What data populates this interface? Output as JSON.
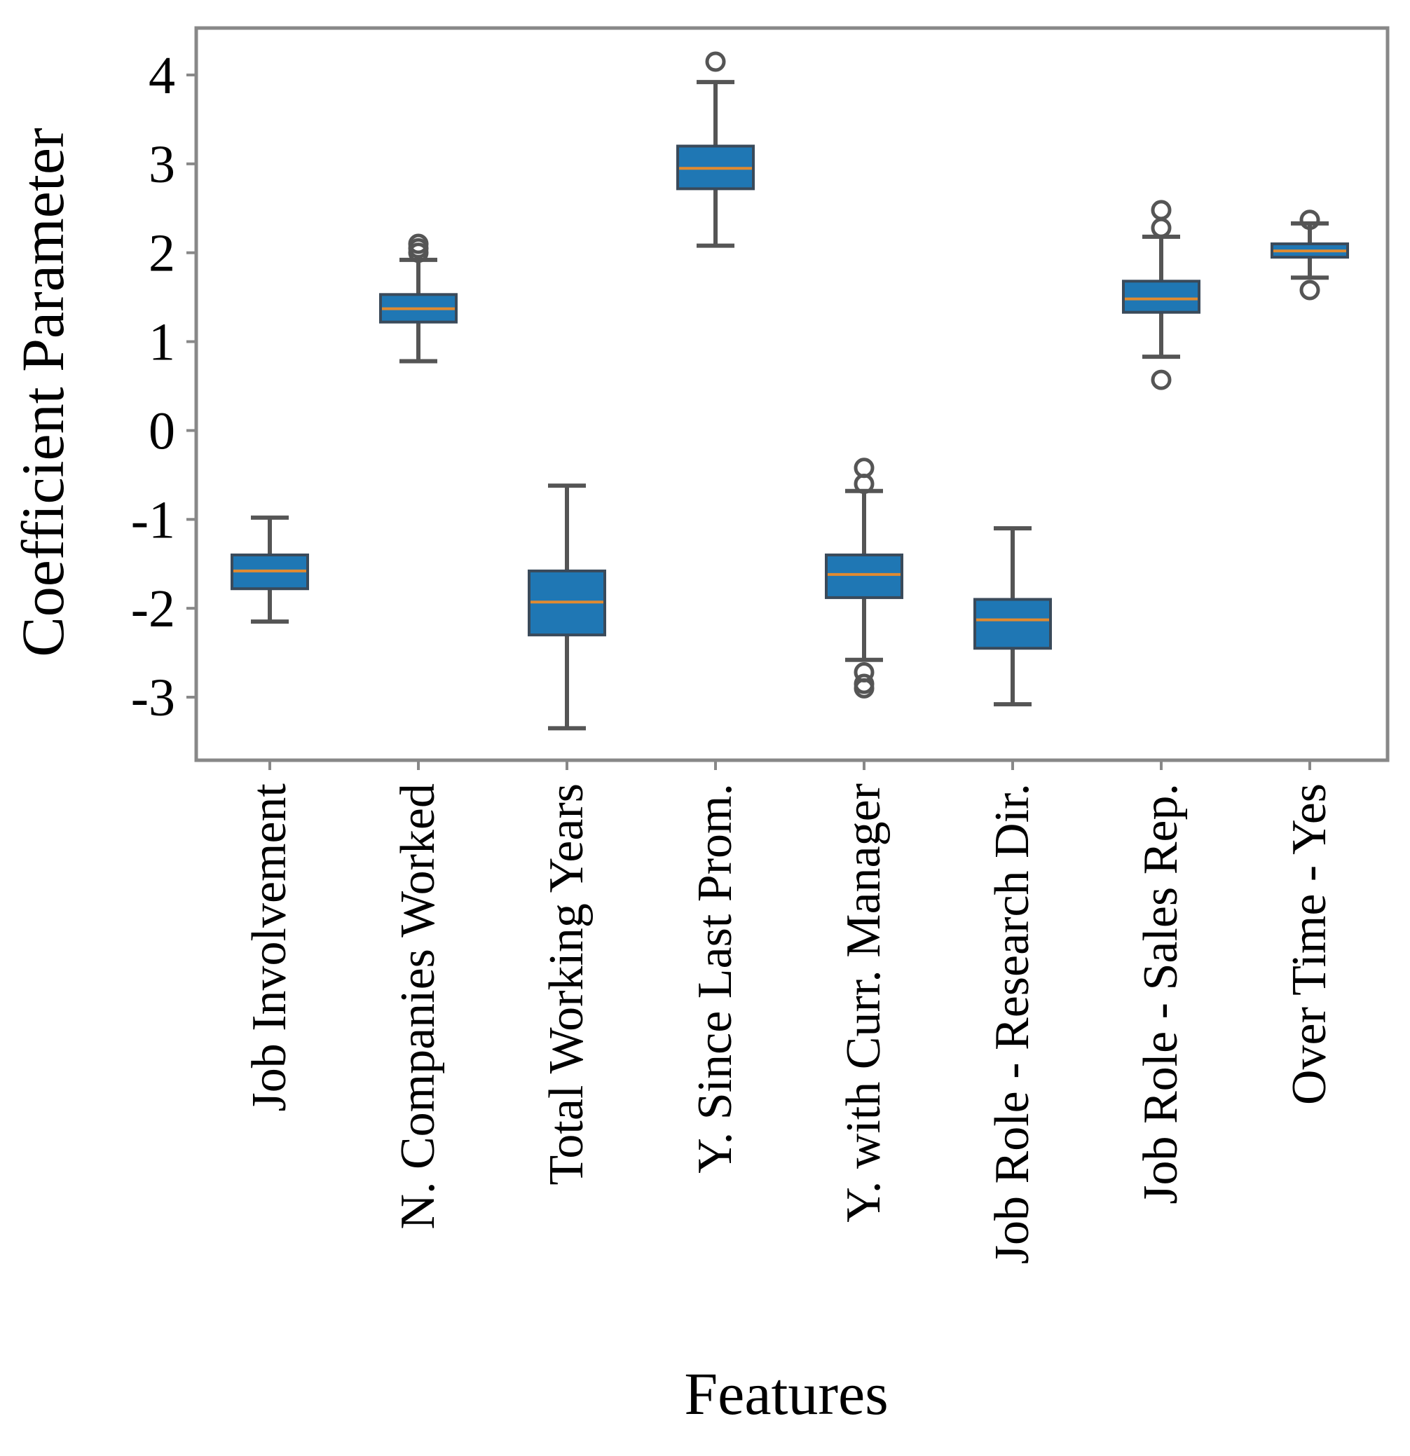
{
  "chart_data": {
    "type": "boxplot",
    "title": "",
    "xlabel": "Features",
    "ylabel": "Coefficient Parameter",
    "ylim": [
      -3.75,
      4.55
    ],
    "yticks": [
      {
        "value": 4,
        "label": "4"
      },
      {
        "value": 3,
        "label": "3"
      },
      {
        "value": 2,
        "label": "2"
      },
      {
        "value": 1,
        "label": "1"
      },
      {
        "value": 0,
        "label": "0"
      },
      {
        "value": -1,
        "label": "-1"
      },
      {
        "value": -2,
        "label": "-2"
      },
      {
        "value": -3,
        "label": "-3"
      }
    ],
    "categories": [
      "Job Involvement",
      "N. Companies Worked",
      "Total Working Years",
      "Y. Since Last Prom.",
      "Y. with Curr. Manager",
      "Job Role - Research Dir.",
      "Job Role - Sales Rep.",
      "Over Time - Yes"
    ],
    "boxes": [
      {
        "whisker_low": -2.15,
        "q1": -1.78,
        "median": -1.58,
        "q3": -1.4,
        "whisker_high": -0.98,
        "outliers": []
      },
      {
        "whisker_low": 0.78,
        "q1": 1.22,
        "median": 1.37,
        "q3": 1.53,
        "whisker_high": 1.92,
        "outliers": [
          2.0,
          2.05,
          2.1
        ]
      },
      {
        "whisker_low": -3.35,
        "q1": -2.3,
        "median": -1.93,
        "q3": -1.58,
        "whisker_high": -0.62,
        "outliers": []
      },
      {
        "whisker_low": 2.08,
        "q1": 2.72,
        "median": 2.95,
        "q3": 3.2,
        "whisker_high": 3.92,
        "outliers": [
          4.15
        ]
      },
      {
        "whisker_low": -2.58,
        "q1": -1.88,
        "median": -1.62,
        "q3": -1.4,
        "whisker_high": -0.68,
        "outliers": [
          -0.42,
          -0.6,
          -2.72,
          -2.85,
          -2.9
        ]
      },
      {
        "whisker_low": -3.08,
        "q1": -2.45,
        "median": -2.13,
        "q3": -1.9,
        "whisker_high": -1.1,
        "outliers": []
      },
      {
        "whisker_low": 0.83,
        "q1": 1.33,
        "median": 1.48,
        "q3": 1.68,
        "whisker_high": 2.18,
        "outliers": [
          2.28,
          2.48,
          0.57
        ]
      },
      {
        "whisker_low": 1.72,
        "q1": 1.95,
        "median": 2.02,
        "q3": 2.1,
        "whisker_high": 2.33,
        "outliers": [
          2.37,
          1.58
        ]
      }
    ],
    "box_color": "#1f77b4",
    "median_color": "#e08a30",
    "whisker_color": "#555555",
    "frame_color": "#888888"
  }
}
